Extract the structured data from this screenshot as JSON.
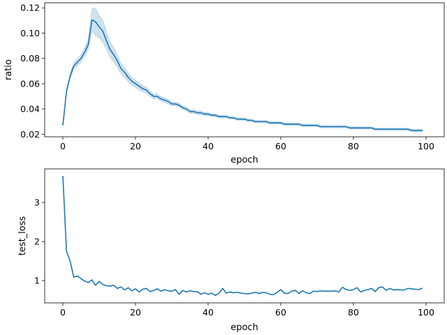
{
  "chart_data": [
    {
      "type": "line",
      "xlabel": "epoch",
      "ylabel": "ratio",
      "xlim": [
        -5,
        105
      ],
      "ylim": [
        0.018,
        0.124
      ],
      "xticks": [
        0,
        20,
        40,
        60,
        80,
        100
      ],
      "yticks": [
        0.02,
        0.04,
        0.06,
        0.08,
        0.1,
        0.12
      ],
      "ytick_labels": [
        "0.02",
        "0.04",
        "0.06",
        "0.08",
        "0.10",
        "0.12"
      ],
      "color": "#1f77b4",
      "band": true,
      "series": [
        {
          "x": [
            0,
            1,
            2,
            3,
            4,
            5,
            6,
            7,
            8,
            9,
            10,
            11,
            12,
            13,
            14,
            15,
            16,
            17,
            18,
            19,
            20,
            21,
            22,
            23,
            24,
            25,
            26,
            27,
            28,
            29,
            30,
            31,
            32,
            33,
            34,
            35,
            36,
            37,
            38,
            39,
            40,
            41,
            42,
            43,
            44,
            45,
            46,
            47,
            48,
            49,
            50,
            51,
            52,
            53,
            54,
            55,
            56,
            57,
            58,
            59,
            60,
            61,
            62,
            63,
            64,
            65,
            66,
            67,
            68,
            69,
            70,
            71,
            72,
            73,
            74,
            75,
            76,
            77,
            78,
            79,
            80,
            81,
            82,
            83,
            84,
            85,
            86,
            87,
            88,
            89,
            90,
            91,
            92,
            93,
            94,
            95,
            96,
            97,
            98,
            99
          ],
          "values": [
            0.027,
            0.054,
            0.066,
            0.074,
            0.077,
            0.08,
            0.085,
            0.091,
            0.1105,
            0.109,
            0.105,
            0.1015,
            0.094,
            0.087,
            0.083,
            0.078,
            0.072,
            0.069,
            0.065,
            0.062,
            0.06,
            0.058,
            0.056,
            0.055,
            0.052,
            0.05,
            0.05,
            0.048,
            0.047,
            0.046,
            0.044,
            0.044,
            0.043,
            0.041,
            0.04,
            0.038,
            0.038,
            0.037,
            0.037,
            0.036,
            0.036,
            0.035,
            0.035,
            0.034,
            0.034,
            0.034,
            0.033,
            0.033,
            0.032,
            0.032,
            0.032,
            0.031,
            0.031,
            0.03,
            0.03,
            0.03,
            0.03,
            0.029,
            0.029,
            0.029,
            0.029,
            0.028,
            0.028,
            0.028,
            0.028,
            0.028,
            0.027,
            0.027,
            0.027,
            0.027,
            0.027,
            0.026,
            0.026,
            0.026,
            0.026,
            0.026,
            0.026,
            0.026,
            0.026,
            0.025,
            0.025,
            0.025,
            0.025,
            0.025,
            0.025,
            0.025,
            0.024,
            0.024,
            0.024,
            0.024,
            0.024,
            0.024,
            0.024,
            0.024,
            0.024,
            0.024,
            0.023,
            0.023,
            0.023,
            0.023
          ],
          "band_half_width": [
            0.0005,
            0.0015,
            0.002,
            0.0025,
            0.003,
            0.003,
            0.0035,
            0.004,
            0.009,
            0.011,
            0.009,
            0.009,
            0.007,
            0.006,
            0.006,
            0.005,
            0.004,
            0.004,
            0.0035,
            0.003,
            0.003,
            0.003,
            0.0025,
            0.0025,
            0.002,
            0.002,
            0.002,
            0.002,
            0.002,
            0.002,
            0.0015,
            0.0015,
            0.0015,
            0.0015,
            0.0015,
            0.0015,
            0.0015,
            0.0015,
            0.0015,
            0.0012,
            0.0012,
            0.0012,
            0.0012,
            0.0012,
            0.0012,
            0.001,
            0.001,
            0.001,
            0.001,
            0.001,
            0.001,
            0.001,
            0.001,
            0.001,
            0.001,
            0.001,
            0.001,
            0.001,
            0.001,
            0.001,
            0.001,
            0.001,
            0.001,
            0.001,
            0.001,
            0.001,
            0.001,
            0.001,
            0.001,
            0.001,
            0.001,
            0.001,
            0.001,
            0.001,
            0.001,
            0.001,
            0.001,
            0.001,
            0.001,
            0.001,
            0.001,
            0.001,
            0.001,
            0.001,
            0.001,
            0.001,
            0.001,
            0.001,
            0.001,
            0.001,
            0.001,
            0.001,
            0.001,
            0.001,
            0.001,
            0.001,
            0.001,
            0.001,
            0.001,
            0.001
          ]
        }
      ]
    },
    {
      "type": "line",
      "xlabel": "epoch",
      "ylabel": "test_loss",
      "xlim": [
        -5,
        105
      ],
      "ylim": [
        0.43,
        3.86
      ],
      "xticks": [
        0,
        20,
        40,
        60,
        80,
        100
      ],
      "yticks": [
        1,
        2,
        3
      ],
      "ytick_labels": [
        "1",
        "2",
        "3"
      ],
      "color": "#1f77b4",
      "band": false,
      "series": [
        {
          "x": [
            0,
            1,
            2,
            3,
            4,
            5,
            6,
            7,
            8,
            9,
            10,
            11,
            12,
            13,
            14,
            15,
            16,
            17,
            18,
            19,
            20,
            21,
            22,
            23,
            24,
            25,
            26,
            27,
            28,
            29,
            30,
            31,
            32,
            33,
            34,
            35,
            36,
            37,
            38,
            39,
            40,
            41,
            42,
            43,
            44,
            45,
            46,
            47,
            48,
            49,
            50,
            51,
            52,
            53,
            54,
            55,
            56,
            57,
            58,
            59,
            60,
            61,
            62,
            63,
            64,
            65,
            66,
            67,
            68,
            69,
            70,
            71,
            72,
            73,
            74,
            75,
            76,
            77,
            78,
            79,
            80,
            81,
            82,
            83,
            84,
            85,
            86,
            87,
            88,
            89,
            90,
            91,
            92,
            93,
            94,
            95,
            96,
            97,
            98,
            99
          ],
          "values": [
            3.68,
            1.75,
            1.5,
            1.09,
            1.12,
            1.05,
            0.99,
            0.95,
            1.02,
            0.88,
            0.98,
            0.9,
            0.87,
            0.86,
            0.88,
            0.8,
            0.84,
            0.76,
            0.82,
            0.74,
            0.79,
            0.71,
            0.78,
            0.8,
            0.72,
            0.75,
            0.79,
            0.73,
            0.77,
            0.74,
            0.73,
            0.77,
            0.65,
            0.75,
            0.71,
            0.74,
            0.72,
            0.72,
            0.65,
            0.69,
            0.65,
            0.68,
            0.62,
            0.68,
            0.8,
            0.68,
            0.71,
            0.69,
            0.7,
            0.68,
            0.67,
            0.66,
            0.68,
            0.7,
            0.67,
            0.7,
            0.69,
            0.65,
            0.64,
            0.7,
            0.77,
            0.68,
            0.67,
            0.73,
            0.75,
            0.67,
            0.74,
            0.69,
            0.67,
            0.73,
            0.72,
            0.74,
            0.73,
            0.73,
            0.73,
            0.74,
            0.71,
            0.83,
            0.77,
            0.75,
            0.77,
            0.82,
            0.71,
            0.75,
            0.77,
            0.8,
            0.72,
            0.82,
            0.84,
            0.75,
            0.8,
            0.76,
            0.77,
            0.76,
            0.76,
            0.8,
            0.79,
            0.78,
            0.77,
            0.81
          ]
        }
      ]
    }
  ]
}
